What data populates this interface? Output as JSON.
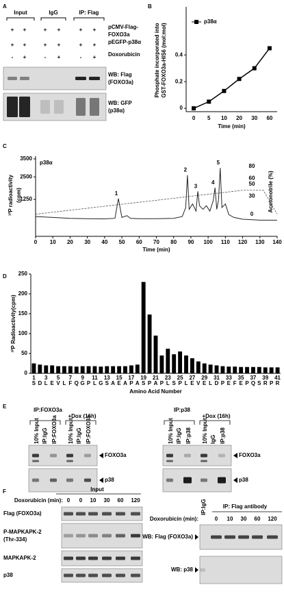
{
  "panel_letters": [
    "A",
    "B",
    "C",
    "D",
    "E",
    "F"
  ],
  "panel_a": {
    "headers": [
      "Input",
      "IgG",
      "IP: Flag"
    ],
    "rows": [
      {
        "signs": [
          "+",
          "+",
          "+",
          "+",
          "+",
          "+"
        ],
        "label": [
          "pCMV-Flag-",
          "FOXO3a"
        ]
      },
      {
        "signs": [
          "+",
          "+",
          "+",
          "+",
          "+",
          "+"
        ],
        "label": [
          "pEGFP-p38α"
        ]
      },
      {
        "signs": [
          "-",
          "+",
          "-",
          "+",
          "-",
          "+"
        ],
        "label": [
          "Doxorubicin"
        ]
      }
    ],
    "blots": [
      {
        "label": [
          "WB: Flag",
          "(FOXO3a)"
        ]
      },
      {
        "label": [
          "WB: GFP",
          "(p38α)"
        ]
      }
    ]
  },
  "chart_data": [
    {
      "type": "line",
      "y_label": [
        "Phosphate incorporated into",
        "GST-FOXO3a-HIS6 (mol:mol)"
      ],
      "x_label": "Time (min)",
      "categories": [
        "0",
        "5",
        "10",
        "20",
        "30",
        "60"
      ],
      "series": [
        {
          "name": "p38α",
          "color": "#000000",
          "values": [
            0,
            0.05,
            0.13,
            0.22,
            0.3,
            0.45
          ]
        }
      ],
      "ylim": [
        -0.025,
        0.76
      ],
      "yticks": [
        0,
        0.2,
        0.4
      ],
      "legend": "upper left"
    },
    {
      "type": "line",
      "label": "p38α",
      "y_label": "³²P radioactivity",
      "y_unit": "(cpm)",
      "y2_label": "Acetonotrile (%)",
      "x_label": "Time (min)",
      "series": [
        {
          "color": "#222222",
          "x": [
            0,
            10,
            20,
            30,
            40,
            46,
            48,
            50,
            53,
            55,
            60,
            70,
            80,
            85,
            87,
            88,
            89,
            91,
            93,
            94,
            95,
            97,
            99,
            101,
            103,
            104,
            105,
            106,
            107,
            108,
            110,
            112,
            115,
            120,
            130,
            140
          ],
          "values": [
            300,
            250,
            200,
            180,
            170,
            200,
            1300,
            250,
            350,
            200,
            180,
            180,
            200,
            300,
            800,
            2600,
            700,
            1000,
            600,
            1700,
            900,
            700,
            900,
            600,
            1200,
            1900,
            700,
            1200,
            3000,
            800,
            1000,
            400,
            250,
            150,
            100,
            100
          ]
        },
        {
          "color": "#555555",
          "axis": "y2",
          "x": [
            0,
            120,
            132,
            140
          ],
          "values": [
            0,
            40,
            40,
            0
          ]
        }
      ],
      "peaks": [
        {
          "label": "1",
          "x": 48
        },
        {
          "label": "2",
          "x": 88
        },
        {
          "label": "3",
          "x": 94
        },
        {
          "label": "4",
          "x": 104
        },
        {
          "label": "5",
          "x": 107
        }
      ],
      "xlim": [
        0,
        140
      ],
      "xticks": [
        0,
        10,
        20,
        30,
        40,
        50,
        60,
        70,
        80,
        90,
        100,
        110,
        120,
        130,
        140
      ],
      "ylim": [
        -800,
        3650
      ],
      "yticks": [
        1250,
        2500,
        3500
      ],
      "y2lim": [
        -37,
        97
      ],
      "y2ticks": [
        0,
        30,
        50,
        60,
        80
      ]
    },
    {
      "type": "bar",
      "y_label": "³²P Radioactivity(cpm)",
      "x_label": "Amino Acid Number",
      "categories": [
        "S",
        "D",
        "L",
        "E",
        "V",
        "L",
        "F",
        "Q",
        "G",
        "P",
        "L",
        "G",
        "S",
        "A",
        "E",
        "A",
        "P",
        "A",
        "S",
        "P",
        "A",
        "P",
        "L",
        "S",
        "P",
        "L",
        "E",
        "V",
        "E",
        "L",
        "D",
        "P",
        "E",
        "F",
        "E",
        "P",
        "Q",
        "S",
        "R",
        "P",
        "R"
      ],
      "values": [
        25,
        22,
        20,
        20,
        18,
        18,
        18,
        17,
        18,
        18,
        18,
        17,
        18,
        18,
        18,
        18,
        20,
        22,
        230,
        148,
        95,
        45,
        62,
        48,
        55,
        45,
        38,
        30,
        25,
        22,
        20,
        18,
        17,
        17,
        16,
        16,
        16,
        16,
        15,
        15,
        15
      ],
      "color": "#000000",
      "xlim": [
        0.5,
        41.5
      ],
      "xticks": [
        1,
        3,
        5,
        7,
        9,
        11,
        13,
        15,
        17,
        19,
        21,
        23,
        25,
        27,
        29,
        31,
        33,
        35,
        37,
        39,
        41
      ],
      "ylim": [
        0,
        250
      ],
      "yticks": [
        0,
        50,
        100,
        150,
        200,
        250
      ]
    }
  ],
  "panel_e": {
    "groups": [
      {
        "title": "IP:FOXO3a",
        "dox": "+Dox (16h)",
        "lanes": [
          "10% Input",
          "IP:IgG",
          "IP:FOXO3a",
          "10% Input",
          "IP:IgG",
          "IP:FOXO3a"
        ],
        "bands": [
          "FOXO3a",
          "p38"
        ]
      },
      {
        "title": "IP:p38",
        "dox": "+Dox (16h)",
        "lanes": [
          "10% Input",
          "IP:IgG",
          "IP:p38",
          "10% Input",
          "IgG",
          "IP:p38"
        ],
        "bands": [
          "FOXO3a",
          "p38"
        ]
      }
    ]
  },
  "panel_f": {
    "input": {
      "title": "Input",
      "dox_label": "Doxorubicin (min):",
      "times": [
        "0",
        "0",
        "10",
        "30",
        "60",
        "120"
      ],
      "rows": [
        [
          "Flag (FOXO3a)"
        ],
        [
          "P-MAPKAPK-2",
          "(Thr-334)"
        ],
        [
          "MAPKAPK-2"
        ],
        [
          "p38"
        ]
      ]
    },
    "ip": {
      "igg": "IP:IgG",
      "title": "IP: Flag antibody",
      "dox_label": "Doxorubicin (min):",
      "times": [
        "0",
        "10",
        "30",
        "60",
        "120"
      ],
      "rows": [
        "WB: Flag (FOXO3a)",
        "WB: p38"
      ]
    }
  }
}
